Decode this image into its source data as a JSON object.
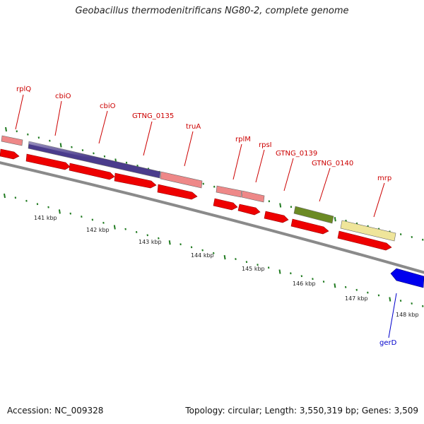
{
  "title": "Geobacillus thermodenitrificans NG80-2, complete genome",
  "accession": "Accession: NC_009328",
  "topology": "Topology: circular; Length: 3,550,319 bp; Genes: 3,509",
  "colors": {
    "backbone": "#8a8a8a",
    "tick": "#1f7a1f",
    "cds": "#ee0000",
    "cds_reverse": "#0000ee",
    "label": "#cc0000",
    "label_reverse": "#0000cc",
    "rna": "#ee8888",
    "cobalamin_gene": "#4a3c8c",
    "gtng_0139": "#6b8a24",
    "mrp": "#efe59a"
  },
  "scale_labels": [
    "141 kbp",
    "142 kbp",
    "143 kbp",
    "144 kbp",
    "145 kbp",
    "146 kbp",
    "147 kbp",
    "148 kbp"
  ],
  "feature_labels": [
    {
      "name": "rplQ",
      "strand": "forward"
    },
    {
      "name": "cbiO",
      "strand": "forward"
    },
    {
      "name": "cbiO",
      "strand": "forward"
    },
    {
      "name": "GTNG_0135",
      "strand": "forward"
    },
    {
      "name": "truA",
      "strand": "forward"
    },
    {
      "name": "rplM",
      "strand": "forward"
    },
    {
      "name": "rpsI",
      "strand": "forward"
    },
    {
      "name": "GTNG_0139",
      "strand": "forward"
    },
    {
      "name": "GTNG_0140",
      "strand": "forward"
    },
    {
      "name": "mrp",
      "strand": "forward"
    },
    {
      "name": "gerD",
      "strand": "reverse"
    }
  ]
}
